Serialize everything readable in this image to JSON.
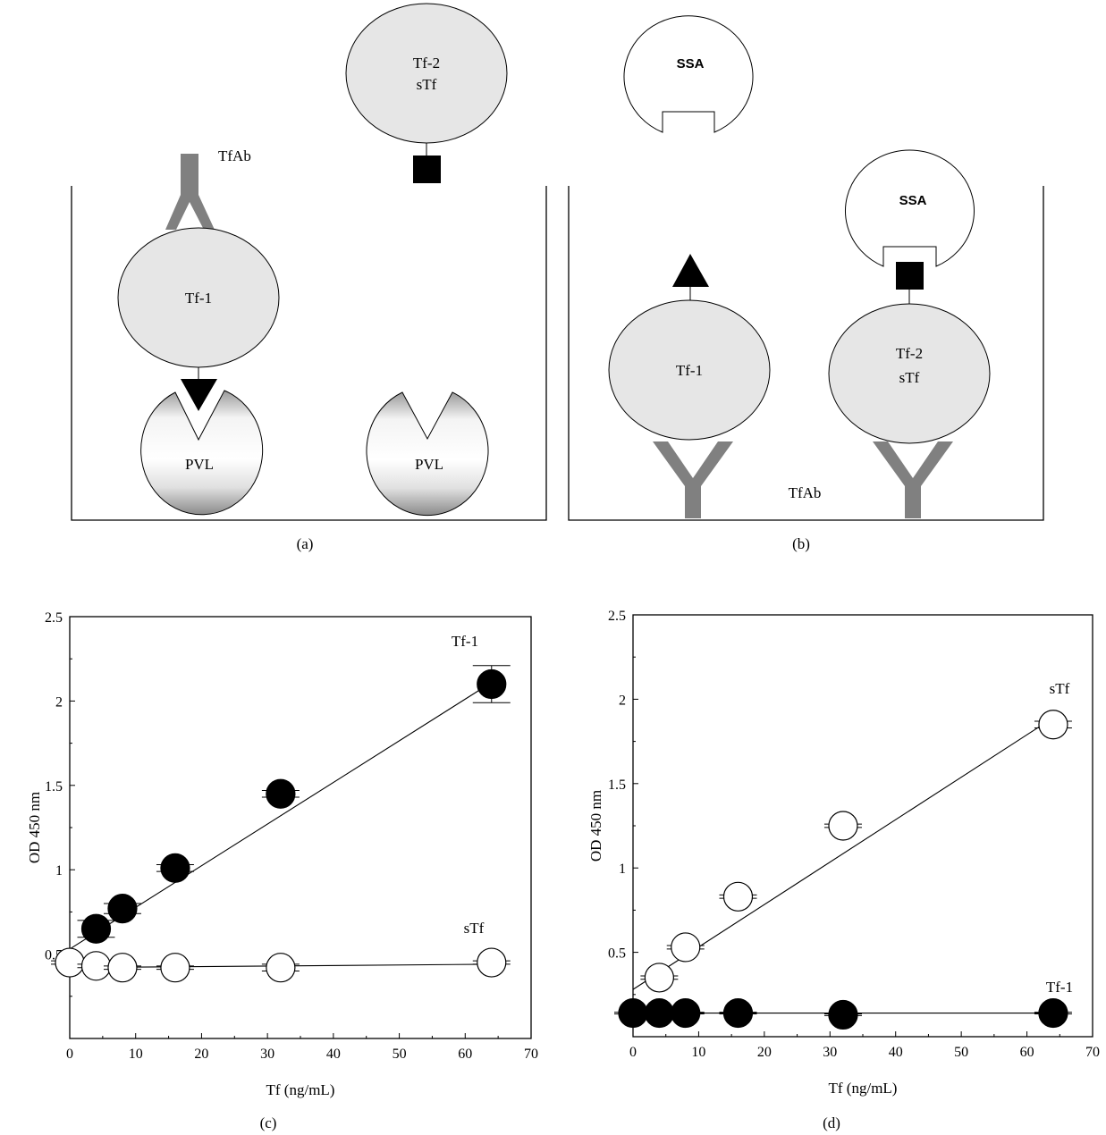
{
  "panel_a": {
    "caption": "(a)",
    "labels": {
      "tfab": "TfAb",
      "tf1": "Tf-1",
      "tf2": "Tf-2",
      "stf": "sTf",
      "pvl_left": "PVL",
      "pvl_right": "PVL"
    }
  },
  "panel_b": {
    "caption": "(b)",
    "labels": {
      "ssa_top": "SSA",
      "ssa_bound": "SSA",
      "tf1": "Tf-1",
      "tf2": "Tf-2",
      "stf": "sTf",
      "tfab": "TfAb"
    }
  },
  "chart_data": [
    {
      "panel": "(c)",
      "type": "scatter",
      "xlabel": "Tf (ng/mL)",
      "ylabel": "OD 450 nm",
      "xlim": [
        0,
        70
      ],
      "ylim": [
        0,
        2.5
      ],
      "xticks": [
        0,
        10,
        20,
        30,
        40,
        50,
        60,
        70
      ],
      "yticks": [
        0.5,
        1,
        1.5,
        2,
        2.5
      ],
      "series": [
        {
          "name": "Tf-1",
          "marker": "filled-circle",
          "x": [
            4,
            8,
            16,
            32,
            64
          ],
          "y": [
            0.65,
            0.77,
            1.01,
            1.45,
            2.1
          ],
          "err": [
            0.05,
            0.03,
            0.02,
            0.02,
            0.11
          ],
          "fit": {
            "x": [
              0,
              64
            ],
            "y": [
              0.53,
              2.11
            ]
          }
        },
        {
          "name": "sTf",
          "marker": "open-circle",
          "x": [
            0,
            4,
            8,
            16,
            32,
            64
          ],
          "y": [
            0.45,
            0.43,
            0.42,
            0.42,
            0.42,
            0.45
          ],
          "err": [
            0.01,
            0.01,
            0.01,
            0.01,
            0.02,
            0.01
          ],
          "fit": {
            "x": [
              0,
              64
            ],
            "y": [
              0.42,
              0.44
            ]
          }
        }
      ]
    },
    {
      "panel": "(d)",
      "type": "scatter",
      "xlabel": "Tf (ng/mL)",
      "ylabel": "OD 450 nm",
      "xlim": [
        0,
        70
      ],
      "ylim": [
        0,
        2.5
      ],
      "xticks": [
        0,
        10,
        20,
        30,
        40,
        50,
        60,
        70
      ],
      "yticks": [
        0.5,
        1,
        1.5,
        2,
        2.5
      ],
      "series": [
        {
          "name": "sTf",
          "marker": "open-circle",
          "x": [
            4,
            8,
            16,
            32,
            64
          ],
          "y": [
            0.35,
            0.53,
            0.83,
            1.25,
            1.85
          ],
          "err": [
            0.01,
            0.01,
            0.01,
            0.01,
            0.02
          ],
          "fit": {
            "x": [
              0,
              64
            ],
            "y": [
              0.28,
              1.89
            ]
          }
        },
        {
          "name": "Tf-1",
          "marker": "filled-circle",
          "x": [
            0,
            4,
            8,
            16,
            32,
            64
          ],
          "y": [
            0.14,
            0.14,
            0.14,
            0.14,
            0.13,
            0.14
          ],
          "err": [
            0.005,
            0.005,
            0.005,
            0.005,
            0.005,
            0.005
          ],
          "fit": {
            "x": [
              0,
              64
            ],
            "y": [
              0.14,
              0.14
            ]
          }
        }
      ]
    }
  ],
  "chart_captions": [
    "(c)",
    "(d)"
  ],
  "series_labels": {
    "c_tf1": "Tf-1",
    "c_stf": "sTf",
    "d_stf": "sTf",
    "d_tf1": "Tf-1"
  },
  "colors": {
    "protein_fill": "#e6e6e6",
    "antibody": "#808080",
    "marker_filled": "#000000",
    "marker_open": "#ffffff"
  }
}
